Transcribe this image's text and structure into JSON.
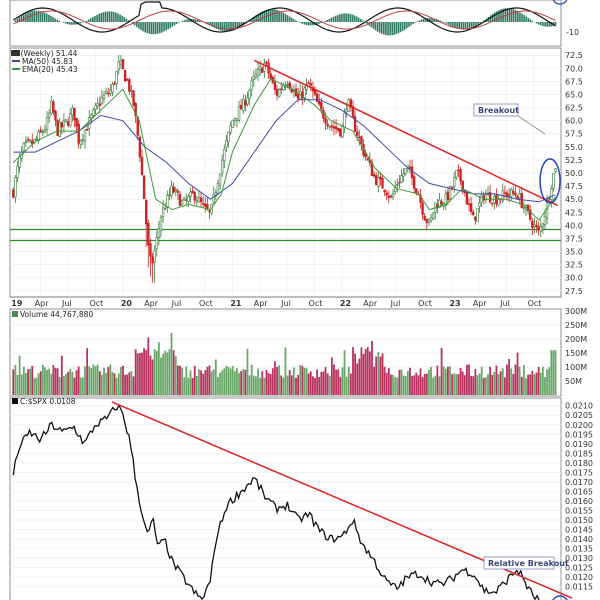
{
  "chart_data": [
    {
      "panel": "top-indicator",
      "type": "area",
      "y_ticks": [
        "-10"
      ],
      "colors": {
        "histogram": "#2f7a62",
        "line_fast": "#111111",
        "line_slow": "#c04040"
      }
    },
    {
      "panel": "price",
      "type": "candlestick",
      "title": "C (Weekly) 51.44",
      "legend": [
        {
          "label": "C (Weekly) 51.44",
          "color": "#333333"
        },
        {
          "label": "MA(50) 45.83",
          "color": "#3d4aa8"
        },
        {
          "label": "EMA(20) 45.43",
          "color": "#3a9a3a"
        }
      ],
      "ylim": [
        26.5,
        73.5
      ],
      "y_ticks": [
        27.5,
        30.0,
        32.5,
        35.0,
        37.5,
        40.0,
        42.5,
        45.0,
        47.5,
        50.0,
        52.5,
        55.0,
        57.5,
        60.0,
        62.5,
        65.0,
        67.5,
        70.0,
        72.5
      ],
      "x_labels": [
        "19",
        "Apr",
        "Jul",
        "Oct",
        "20",
        "Apr",
        "Jul",
        "Oct",
        "21",
        "Apr",
        "Jul",
        "Oct",
        "22",
        "Apr",
        "Jul",
        "Oct",
        "23",
        "Apr",
        "Jul",
        "Oct"
      ],
      "x_bold": [
        "19",
        "20",
        "21",
        "22",
        "23"
      ],
      "close_path": [
        [
          2019.0,
          46.5
        ],
        [
          2019.05,
          52
        ],
        [
          2019.1,
          55
        ],
        [
          2019.2,
          56
        ],
        [
          2019.3,
          59
        ],
        [
          2019.35,
          63
        ],
        [
          2019.4,
          58
        ],
        [
          2019.5,
          60
        ],
        [
          2019.55,
          62
        ],
        [
          2019.6,
          56
        ],
        [
          2019.65,
          58
        ],
        [
          2019.8,
          64
        ],
        [
          2019.9,
          66
        ],
        [
          2019.97,
          71
        ],
        [
          2020.05,
          67
        ],
        [
          2020.1,
          63
        ],
        [
          2020.15,
          55
        ],
        [
          2020.2,
          44
        ],
        [
          2020.23,
          36
        ],
        [
          2020.26,
          32
        ],
        [
          2020.3,
          36
        ],
        [
          2020.35,
          42
        ],
        [
          2020.45,
          47
        ],
        [
          2020.55,
          44
        ],
        [
          2020.65,
          46
        ],
        [
          2020.75,
          43
        ],
        [
          2020.8,
          42
        ],
        [
          2020.85,
          47
        ],
        [
          2020.9,
          52
        ],
        [
          2021.0,
          60
        ],
        [
          2021.1,
          63
        ],
        [
          2021.2,
          68
        ],
        [
          2021.3,
          71
        ],
        [
          2021.35,
          68
        ],
        [
          2021.4,
          65
        ],
        [
          2021.5,
          68
        ],
        [
          2021.6,
          64
        ],
        [
          2021.7,
          67
        ],
        [
          2021.8,
          62
        ],
        [
          2021.9,
          59
        ],
        [
          2022.0,
          58
        ],
        [
          2022.05,
          64
        ],
        [
          2022.1,
          60
        ],
        [
          2022.2,
          54
        ],
        [
          2022.3,
          49
        ],
        [
          2022.4,
          47
        ],
        [
          2022.45,
          45
        ],
        [
          2022.5,
          48
        ],
        [
          2022.6,
          51
        ],
        [
          2022.7,
          46
        ],
        [
          2022.75,
          42
        ],
        [
          2022.8,
          40
        ],
        [
          2022.85,
          44
        ],
        [
          2022.95,
          45
        ],
        [
          2023.0,
          47
        ],
        [
          2023.05,
          50
        ],
        [
          2023.1,
          48
        ],
        [
          2023.15,
          44
        ],
        [
          2023.2,
          41
        ],
        [
          2023.3,
          46
        ],
        [
          2023.4,
          45
        ],
        [
          2023.5,
          46
        ],
        [
          2023.6,
          46
        ],
        [
          2023.65,
          44
        ],
        [
          2023.7,
          42
        ],
        [
          2023.75,
          40
        ],
        [
          2023.8,
          38.5
        ],
        [
          2023.85,
          42
        ],
        [
          2023.9,
          47
        ],
        [
          2023.95,
          51.44
        ]
      ],
      "ma50_path": [
        [
          2019.0,
          54
        ],
        [
          2019.2,
          54
        ],
        [
          2019.4,
          56
        ],
        [
          2019.6,
          58
        ],
        [
          2019.8,
          61
        ],
        [
          2020.0,
          60
        ],
        [
          2020.2,
          55
        ],
        [
          2020.4,
          52
        ],
        [
          2020.6,
          48
        ],
        [
          2020.8,
          45
        ],
        [
          2021.0,
          48
        ],
        [
          2021.2,
          54
        ],
        [
          2021.4,
          60
        ],
        [
          2021.6,
          64
        ],
        [
          2021.8,
          64
        ],
        [
          2022.0,
          62
        ],
        [
          2022.2,
          59
        ],
        [
          2022.4,
          55
        ],
        [
          2022.6,
          51
        ],
        [
          2022.8,
          48
        ],
        [
          2023.0,
          47
        ],
        [
          2023.2,
          46
        ],
        [
          2023.4,
          46
        ],
        [
          2023.6,
          45
        ],
        [
          2023.8,
          44.5
        ],
        [
          2023.95,
          45.83
        ]
      ],
      "ema20_path": [
        [
          2019.0,
          52
        ],
        [
          2019.2,
          56
        ],
        [
          2019.4,
          58
        ],
        [
          2019.6,
          58
        ],
        [
          2019.8,
          62
        ],
        [
          2020.0,
          66
        ],
        [
          2020.15,
          60
        ],
        [
          2020.3,
          45
        ],
        [
          2020.45,
          43
        ],
        [
          2020.6,
          44
        ],
        [
          2020.8,
          43
        ],
        [
          2020.9,
          46
        ],
        [
          2021.0,
          54
        ],
        [
          2021.2,
          63
        ],
        [
          2021.35,
          68
        ],
        [
          2021.55,
          66
        ],
        [
          2021.75,
          63
        ],
        [
          2021.9,
          60
        ],
        [
          2022.1,
          58
        ],
        [
          2022.3,
          51
        ],
        [
          2022.5,
          47
        ],
        [
          2022.7,
          46
        ],
        [
          2022.8,
          43
        ],
        [
          2022.95,
          44
        ],
        [
          2023.1,
          47
        ],
        [
          2023.3,
          45
        ],
        [
          2023.5,
          45
        ],
        [
          2023.65,
          44
        ],
        [
          2023.8,
          41
        ],
        [
          2023.9,
          44
        ],
        [
          2023.95,
          45.43
        ]
      ],
      "trendline": [
        [
          2021.2,
          71.5
        ],
        [
          2023.97,
          43.8
        ]
      ],
      "support_levels": [
        39.2,
        37.1
      ],
      "annotation": "Breakout",
      "colors": {
        "up": "#3a7a3a",
        "down": "#cc2222",
        "ma50": "#3d4aa8",
        "ema20": "#3a9a3a",
        "trend": "#dd2222",
        "support": "#2e8b2e",
        "circle": "#2a45b5"
      }
    },
    {
      "panel": "volume",
      "type": "bar",
      "legend": [
        {
          "label": "Volume 44,767,880",
          "color": "#4a8a4a"
        }
      ],
      "ylim": [
        0,
        300
      ],
      "y_ticks": [
        "50M",
        "100M",
        "150M",
        "200M",
        "250M",
        "300M"
      ],
      "colors": {
        "up": "#6aa86a",
        "down": "#b8335f"
      }
    },
    {
      "panel": "relative",
      "type": "line",
      "legend": [
        {
          "label": "C:$SPX 0.0108",
          "color": "#111111"
        }
      ],
      "ylim": [
        0.0108,
        0.0213
      ],
      "y_ticks": [
        0.0115,
        0.012,
        0.0125,
        0.013,
        0.0135,
        0.014,
        0.0145,
        0.015,
        0.0155,
        0.016,
        0.0165,
        0.017,
        0.0175,
        0.018,
        0.0185,
        0.019,
        0.0195,
        0.02,
        0.0205,
        0.021
      ],
      "line_path": [
        [
          2019.0,
          0.0174
        ],
        [
          2019.05,
          0.0188
        ],
        [
          2019.15,
          0.0196
        ],
        [
          2019.25,
          0.0192
        ],
        [
          2019.35,
          0.02
        ],
        [
          2019.45,
          0.0196
        ],
        [
          2019.55,
          0.0199
        ],
        [
          2019.65,
          0.019
        ],
        [
          2019.75,
          0.02
        ],
        [
          2019.85,
          0.0203
        ],
        [
          2019.95,
          0.021
        ],
        [
          2020.0,
          0.0206
        ],
        [
          2020.07,
          0.019
        ],
        [
          2020.12,
          0.017
        ],
        [
          2020.17,
          0.0155
        ],
        [
          2020.22,
          0.0142
        ],
        [
          2020.28,
          0.015
        ],
        [
          2020.32,
          0.0135
        ],
        [
          2020.38,
          0.014
        ],
        [
          2020.45,
          0.0128
        ],
        [
          2020.55,
          0.012
        ],
        [
          2020.65,
          0.0112
        ],
        [
          2020.72,
          0.0108
        ],
        [
          2020.8,
          0.0118
        ],
        [
          2020.85,
          0.014
        ],
        [
          2020.95,
          0.0158
        ],
        [
          2021.1,
          0.0166
        ],
        [
          2021.2,
          0.0172
        ],
        [
          2021.3,
          0.0162
        ],
        [
          2021.4,
          0.0156
        ],
        [
          2021.5,
          0.0158
        ],
        [
          2021.6,
          0.015
        ],
        [
          2021.7,
          0.0153
        ],
        [
          2021.8,
          0.0144
        ],
        [
          2021.9,
          0.014
        ],
        [
          2022.0,
          0.0141
        ],
        [
          2022.1,
          0.015
        ],
        [
          2022.18,
          0.0138
        ],
        [
          2022.3,
          0.0128
        ],
        [
          2022.4,
          0.0118
        ],
        [
          2022.5,
          0.0114
        ],
        [
          2022.6,
          0.012
        ],
        [
          2022.7,
          0.0122
        ],
        [
          2022.8,
          0.0118
        ],
        [
          2022.9,
          0.0116
        ],
        [
          2023.0,
          0.0119
        ],
        [
          2023.1,
          0.0124
        ],
        [
          2023.2,
          0.0122
        ],
        [
          2023.3,
          0.0113
        ],
        [
          2023.4,
          0.0112
        ],
        [
          2023.5,
          0.0118
        ],
        [
          2023.6,
          0.0124
        ],
        [
          2023.65,
          0.012
        ],
        [
          2023.7,
          0.0114
        ],
        [
          2023.75,
          0.011
        ],
        [
          2023.8,
          0.0108
        ]
      ],
      "trendline": [
        [
          2019.9,
          0.0212
        ],
        [
          2024.1,
          0.0109
        ]
      ],
      "annotation": "Relative Breakout",
      "colors": {
        "line": "#111111",
        "trend": "#dd2222",
        "circle": "#2a45b5"
      }
    }
  ]
}
